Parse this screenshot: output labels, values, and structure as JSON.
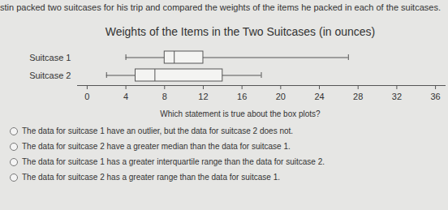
{
  "header": {
    "text": "stin packed two suitcases for his trip and compared the weights of the items he packed in each of the suitcases."
  },
  "chart_data": {
    "type": "boxplot",
    "title": "Weights of the Items in the Two Suitcases (in ounces)",
    "orientation": "horizontal",
    "series": [
      {
        "name": "Suitcase 1",
        "min": 4,
        "q1": 8,
        "median": 9,
        "q3": 12,
        "max": 27
      },
      {
        "name": "Suitcase 2",
        "min": 2,
        "q1": 5,
        "median": 7,
        "q3": 14,
        "max": 18
      }
    ],
    "xlim": [
      -1,
      37
    ],
    "xticks": [
      0,
      4,
      8,
      12,
      16,
      20,
      24,
      28,
      32,
      36
    ],
    "grid": false
  },
  "question": "Which statement is true about the box plots?",
  "choices": [
    "The data for suitcase 1 have an outlier, but the data for suitcase 2 does not.",
    "The data for suitcase 2 have a greater median than the data for suitcase 1.",
    "The data for suitcase 1 has a greater interquartile range than the data for suitcase 2.",
    "The data for suitcase 2 has a greater range than the data for suitcase 1."
  ]
}
